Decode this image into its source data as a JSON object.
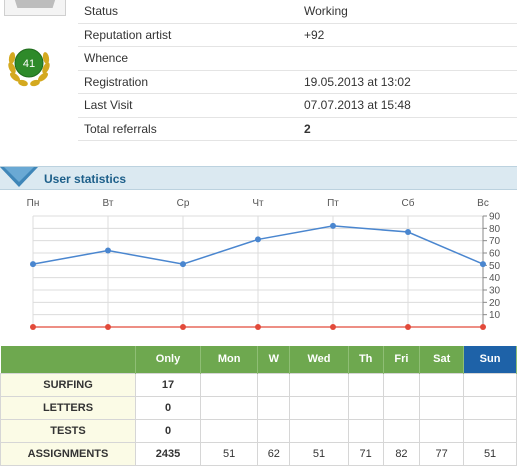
{
  "profile": {
    "badge_level": "41",
    "fields": [
      {
        "label": "Status",
        "value": "Working"
      },
      {
        "label": "Reputation artist",
        "value": "+92"
      },
      {
        "label": "Whence",
        "value": ""
      },
      {
        "label": "Registration",
        "value": "19.05.2013 at 13:02"
      },
      {
        "label": "Last Visit",
        "value": "07.07.2013 at 15:48"
      },
      {
        "label": "Total referrals",
        "value": "2"
      }
    ]
  },
  "section": {
    "title": "User statistics"
  },
  "colors": {
    "header_green": "#6ea84f",
    "sunday_blue": "#1e62a8",
    "line_blue": "#4a86cf",
    "baseline_red": "#e24a3a",
    "section_bg": "#dbe9f1"
  },
  "chart_data": {
    "type": "line",
    "categories": [
      "Пн",
      "Вт",
      "Ср",
      "Чт",
      "Пт",
      "Сб",
      "Вс"
    ],
    "series": [
      {
        "values": [
          51,
          62,
          51,
          71,
          82,
          77,
          51
        ]
      },
      {
        "values": [
          0,
          0,
          0,
          0,
          0,
          0,
          0
        ]
      }
    ],
    "yticks": [
      "90",
      "80",
      "70",
      "60",
      "50",
      "40",
      "30",
      "20",
      "10"
    ],
    "ylim": [
      0,
      90
    ],
    "grid": true,
    "ylabel_side": "right"
  },
  "stats_table": {
    "headers": [
      "",
      "Only",
      "Mon",
      "W",
      "Wed",
      "Th",
      "Fri",
      "Sat",
      "Sun"
    ],
    "rows": [
      {
        "label": "SURFING",
        "only": "17",
        "days": [
          "",
          "",
          "",
          "",
          "",
          "",
          ""
        ]
      },
      {
        "label": "LETTERS",
        "only": "0",
        "days": [
          "",
          "",
          "",
          "",
          "",
          "",
          ""
        ]
      },
      {
        "label": "TESTS",
        "only": "0",
        "days": [
          "",
          "",
          "",
          "",
          "",
          "",
          ""
        ]
      },
      {
        "label": "ASSIGNMENTS",
        "only": "2435",
        "days": [
          "51",
          "62",
          "51",
          "71",
          "82",
          "77",
          "51"
        ]
      }
    ]
  }
}
